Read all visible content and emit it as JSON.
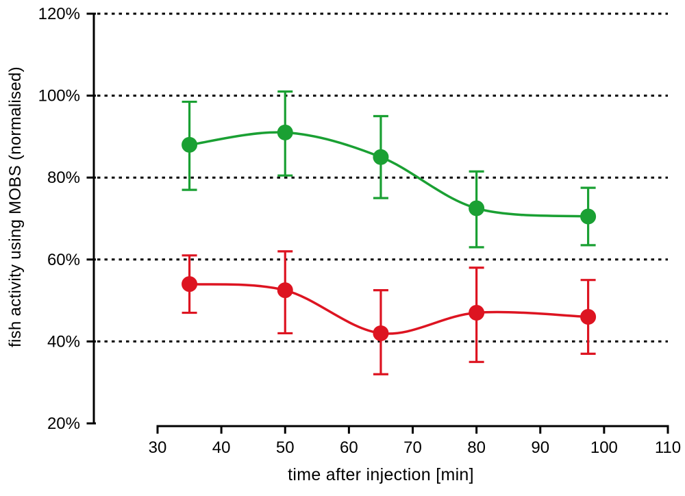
{
  "chart_data": {
    "type": "line",
    "title": "",
    "xlabel": "time after injection [min]",
    "ylabel": "fish activity using MOBS (normalised)",
    "xlim": [
      30,
      110
    ],
    "ylim": [
      20,
      120
    ],
    "x_ticks": [
      30,
      40,
      50,
      60,
      70,
      80,
      90,
      100,
      110
    ],
    "x_tick_labels": [
      "30",
      "40",
      "50",
      "60",
      "70",
      "80",
      "90",
      "100",
      "110"
    ],
    "y_ticks": [
      20,
      40,
      60,
      80,
      100,
      120
    ],
    "y_tick_labels": [
      "20%",
      "40%",
      "60%",
      "80%",
      "100%",
      "120%"
    ],
    "gridline_values": [
      40,
      60,
      80,
      100,
      120
    ],
    "gridline_style": "dotted",
    "legend_position": "none",
    "marker": "filled-circle",
    "error_bars": true,
    "series": [
      {
        "name": "green-series",
        "color": "#1aa033",
        "x": [
          35,
          50,
          65,
          80,
          97.5
        ],
        "y": [
          88,
          91,
          85,
          72.5,
          70.5
        ],
        "err_low": [
          77,
          80.5,
          75,
          63,
          63.5
        ],
        "err_high": [
          98.5,
          101,
          95,
          81.5,
          77.5
        ]
      },
      {
        "name": "red-series",
        "color": "#dd1421",
        "x": [
          35,
          50,
          65,
          80,
          97.5
        ],
        "y": [
          54,
          52.5,
          42,
          47,
          46
        ],
        "err_low": [
          47,
          42,
          32,
          35,
          37
        ],
        "err_high": [
          61,
          62,
          52.5,
          58,
          55
        ]
      }
    ]
  },
  "colors": {
    "background": "#ffffff",
    "axis": "#000000",
    "text": "#000000"
  }
}
